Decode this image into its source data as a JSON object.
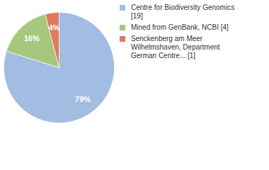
{
  "chart_data": {
    "type": "pie",
    "categories": [
      "Centre for Biodiversity Genomics [19]",
      "Mined from GenBank, NCBI [4]",
      "Senckenberg am Meer Wilhelmshaven, Department German Centre... [1]"
    ],
    "values": [
      79,
      16,
      4
    ],
    "value_labels": [
      "79%",
      "16%",
      "4%"
    ],
    "colors": [
      "#a1bde2",
      "#a6c87e",
      "#e07a5e"
    ],
    "data_labels": true,
    "legend": "right"
  }
}
